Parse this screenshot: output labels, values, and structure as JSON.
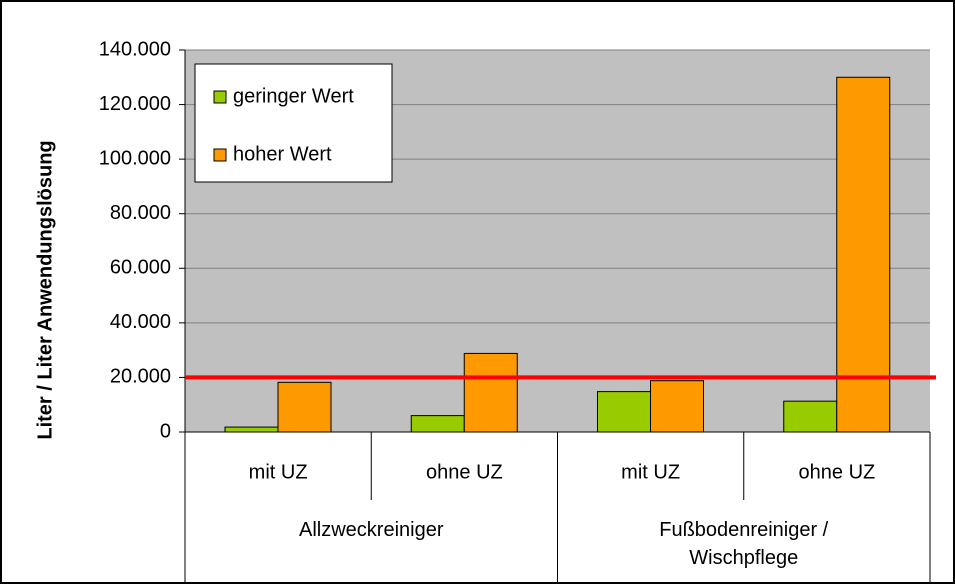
{
  "chart_data": {
    "type": "bar",
    "y_axis_label": "Liter / Liter Anwendungslösung",
    "categories": [
      "mit UZ",
      "ohne UZ",
      "mit UZ",
      "ohne UZ"
    ],
    "groups": [
      {
        "label": "Allzweckreiniger",
        "size": 2
      },
      {
        "label": "Fußbodenreiniger / Wischpflege",
        "size": 2
      }
    ],
    "series": [
      {
        "name": "geringer Wert",
        "color": "#99cc00",
        "values": [
          1800,
          6000,
          14800,
          11300
        ]
      },
      {
        "name": "hoher Wert",
        "color": "#ff9900",
        "values": [
          18200,
          28800,
          18800,
          130000
        ]
      }
    ],
    "reference_line": {
      "value": 20000,
      "color": "#ff0000"
    },
    "ylim": [
      0,
      140000
    ],
    "yticks": [
      0,
      {
        "value": 20000,
        "label": "20.000"
      },
      {
        "value": 40000,
        "label": "40.000"
      },
      {
        "value": 60000,
        "label": "60.000"
      },
      {
        "value": 80000,
        "label": "80.000"
      },
      {
        "value": 100000,
        "label": "100.000"
      },
      {
        "value": 120000,
        "label": "120.000"
      },
      {
        "value": 140000,
        "label": "140.000"
      }
    ],
    "grid": true,
    "legend": "top-left"
  }
}
